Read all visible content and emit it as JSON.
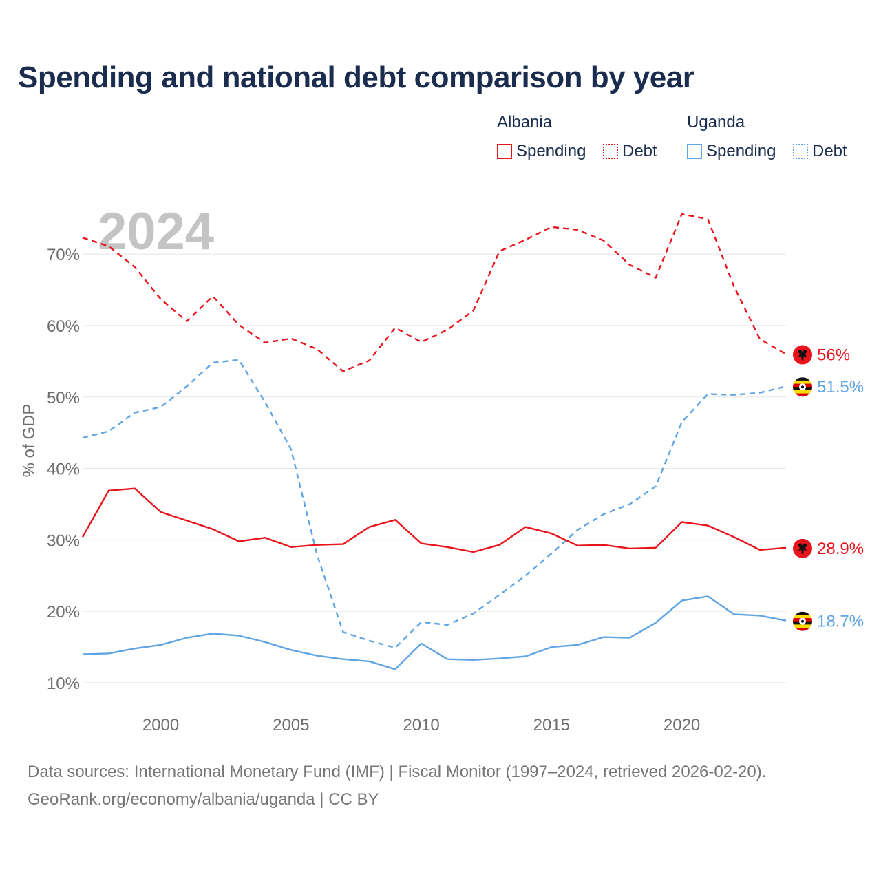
{
  "title": "Spending and national debt comparison by year",
  "legend": {
    "groups": [
      {
        "name": "Albania",
        "items": [
          {
            "label": "Spending",
            "style": "solid"
          },
          {
            "label": "Debt",
            "style": "dotted"
          }
        ]
      },
      {
        "name": "Uganda",
        "items": [
          {
            "label": "Spending",
            "style": "solid"
          },
          {
            "label": "Debt",
            "style": "dotted"
          }
        ]
      }
    ]
  },
  "watermark_year": "2024",
  "colors": {
    "albania": "#e8141c",
    "uganda": "#5fa5e3",
    "grid": "#e8e8e8",
    "axis_text": "#6e6e6e"
  },
  "footer": {
    "line1": "Data sources: International Monetary Fund (IMF) | Fiscal Monitor (1997–2024, retrieved 2026-02-20).",
    "line2": "GeoRank.org/economy/albania/uganda | CC BY"
  },
  "chart_data": {
    "type": "line",
    "ylabel": "% of GDP",
    "xlabel": "",
    "xlim": [
      1997,
      2024
    ],
    "ylim": [
      10,
      75
    ],
    "yticks": [
      10,
      20,
      30,
      40,
      50,
      60,
      70
    ],
    "ytick_labels": [
      "10%",
      "20%",
      "30%",
      "40%",
      "50%",
      "60%",
      "70%"
    ],
    "xticks": [
      2000,
      2005,
      2010,
      2015,
      2020
    ],
    "xtick_labels": [
      "2000",
      "2005",
      "2010",
      "2015",
      "2020"
    ],
    "x": [
      1997,
      1998,
      1999,
      2000,
      2001,
      2002,
      2003,
      2004,
      2005,
      2006,
      2007,
      2008,
      2009,
      2010,
      2011,
      2012,
      2013,
      2014,
      2015,
      2016,
      2017,
      2018,
      2019,
      2020,
      2021,
      2022,
      2023,
      2024
    ],
    "series": [
      {
        "name": "Albania Debt",
        "country": "albania",
        "style": "dashed",
        "values": [
          72.3,
          71.1,
          68.2,
          63.7,
          60.6,
          64.1,
          60.1,
          57.6,
          58.2,
          56.7,
          53.6,
          55.1,
          59.7,
          57.7,
          59.4,
          62.1,
          70.4,
          72.0,
          73.8,
          73.4,
          71.9,
          68.5,
          66.7,
          75.6,
          74.9,
          65.5,
          58.1,
          56.0
        ],
        "end_label": "56%"
      },
      {
        "name": "Uganda Debt",
        "country": "uganda",
        "style": "dashed",
        "values": [
          44.3,
          45.2,
          47.8,
          48.6,
          51.5,
          54.8,
          55.2,
          49.3,
          42.7,
          27.9,
          17.1,
          15.9,
          14.9,
          18.5,
          18.1,
          19.7,
          22.3,
          25.0,
          28.1,
          31.4,
          33.6,
          35.0,
          37.5,
          46.5,
          50.4,
          50.3,
          50.6,
          51.5
        ],
        "end_label": "51.5%"
      },
      {
        "name": "Albania Spending",
        "country": "albania",
        "style": "solid",
        "values": [
          30.4,
          36.9,
          37.2,
          33.9,
          32.7,
          31.5,
          29.8,
          30.3,
          29.0,
          29.3,
          29.4,
          31.8,
          32.8,
          29.5,
          29.0,
          28.3,
          29.3,
          31.8,
          30.9,
          29.2,
          29.3,
          28.8,
          28.9,
          32.5,
          32.0,
          30.4,
          28.6,
          28.9
        ],
        "end_label": "28.9%"
      },
      {
        "name": "Uganda Spending",
        "country": "uganda",
        "style": "solid",
        "values": [
          14.0,
          14.1,
          14.8,
          15.3,
          16.3,
          16.9,
          16.6,
          15.7,
          14.6,
          13.8,
          13.3,
          13.0,
          11.9,
          15.5,
          13.3,
          13.2,
          13.4,
          13.7,
          15.0,
          15.3,
          16.4,
          16.3,
          18.4,
          21.5,
          22.1,
          19.6,
          19.4,
          18.7
        ],
        "end_label": "18.7%"
      }
    ]
  }
}
